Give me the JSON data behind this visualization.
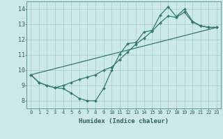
{
  "xlabel": "Humidex (Indice chaleur)",
  "bg_color": "#cce8e8",
  "line_color": "#2d7a6e",
  "grid_color": "#aacfcf",
  "xlim": [
    -0.5,
    23.5
  ],
  "ylim": [
    7.5,
    14.5
  ],
  "xticks": [
    0,
    1,
    2,
    3,
    4,
    5,
    6,
    7,
    8,
    9,
    10,
    11,
    12,
    13,
    14,
    15,
    16,
    17,
    18,
    19,
    20,
    21,
    22,
    23
  ],
  "yticks": [
    8,
    9,
    10,
    11,
    12,
    13,
    14
  ],
  "line1_x": [
    0,
    1,
    2,
    3,
    4,
    5,
    6,
    7,
    8,
    9,
    10,
    11,
    12,
    13,
    14,
    15,
    16,
    17,
    18,
    19,
    20,
    21,
    22,
    23
  ],
  "line1_y": [
    9.7,
    9.2,
    9.0,
    8.85,
    8.8,
    8.5,
    8.15,
    8.0,
    8.0,
    8.8,
    10.0,
    11.05,
    11.75,
    11.8,
    12.5,
    12.6,
    13.6,
    14.15,
    13.5,
    14.0,
    13.2,
    12.9,
    12.8,
    12.8
  ],
  "line2_x": [
    0,
    1,
    2,
    3,
    4,
    5,
    6,
    7,
    8,
    9,
    10,
    11,
    12,
    13,
    14,
    15,
    16,
    17,
    18,
    19,
    20,
    21,
    22,
    23
  ],
  "line2_y": [
    9.7,
    9.2,
    9.0,
    8.85,
    9.0,
    9.2,
    9.4,
    9.55,
    9.7,
    10.0,
    10.2,
    10.7,
    11.2,
    11.7,
    12.1,
    12.55,
    13.1,
    13.55,
    13.45,
    13.8,
    13.15,
    12.9,
    12.8,
    12.8
  ],
  "line3_x": [
    0,
    23
  ],
  "line3_y": [
    9.7,
    12.8
  ]
}
